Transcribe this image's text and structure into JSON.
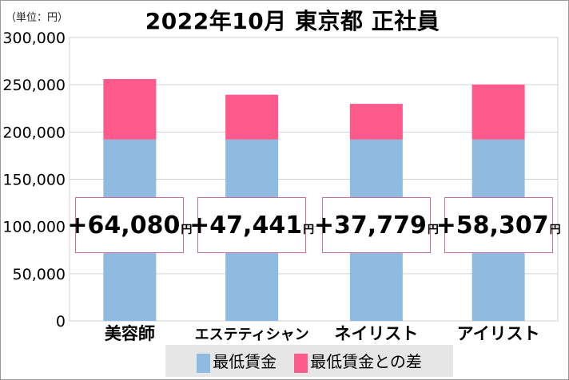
{
  "chart_data": {
    "type": "bar",
    "stacked": true,
    "title": "2022年10月 東京都 正社員",
    "unit_label": "（単位：円）",
    "categories": [
      "美容師",
      "エステティシャン",
      "ネイリスト",
      "アイリスト"
    ],
    "series": [
      {
        "name": "最低賃金",
        "values": [
          192000,
          192000,
          192000,
          192000
        ],
        "color": "#8fbbe0"
      },
      {
        "name": "最低賃金との差",
        "values": [
          64080,
          47441,
          37779,
          58307
        ],
        "color": "#ff5a8c"
      }
    ],
    "data_labels": [
      "+64,080",
      "+47,441",
      "+37,779",
      "+58,307"
    ],
    "data_label_unit": "円",
    "ylim": [
      0,
      300000
    ],
    "yticks": [
      "0",
      "50,000",
      "100,000",
      "150,000",
      "200,000",
      "250,000",
      "300,000"
    ],
    "grid": true,
    "legend_position": "bottom"
  }
}
